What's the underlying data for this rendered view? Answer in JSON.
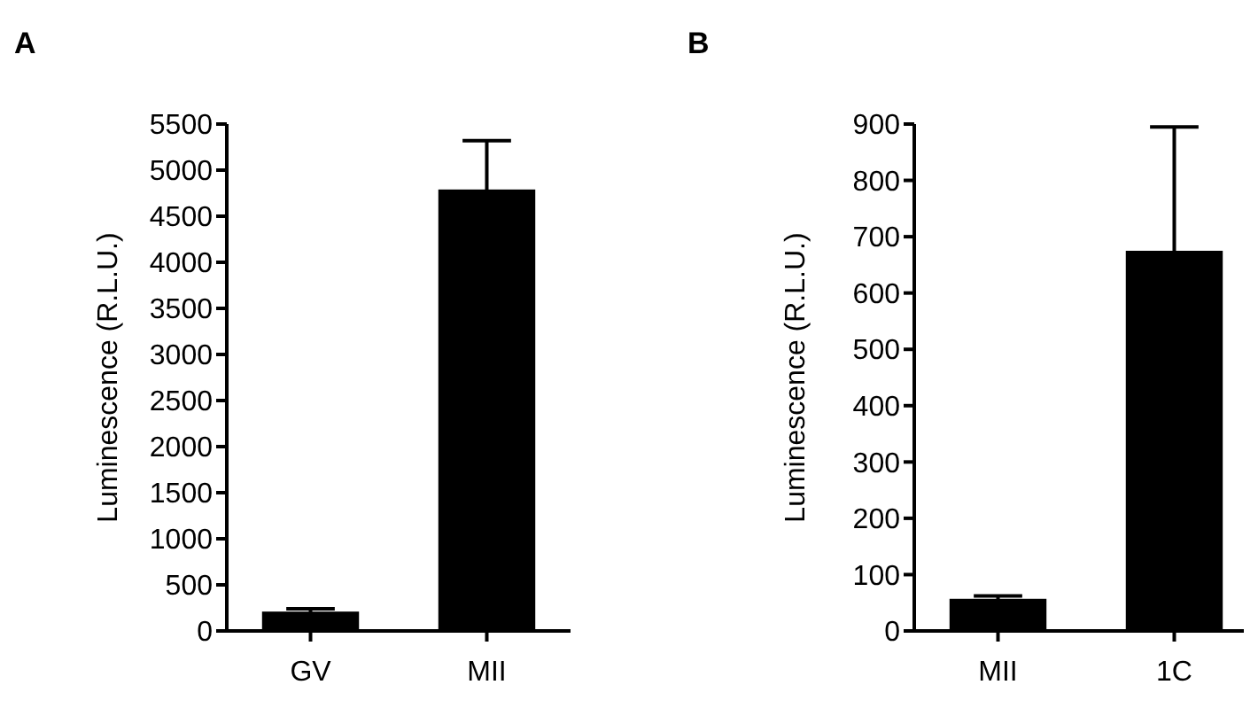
{
  "chart_data": [
    {
      "type": "bar",
      "title": "A",
      "ylabel": "Luminescence (R.L.U.)",
      "categories": [
        "GV",
        "MII"
      ],
      "values": [
        210,
        4790
      ],
      "errors": [
        30,
        530
      ],
      "color": "#000000",
      "ylim": [
        0,
        5500
      ],
      "yticks": [
        0,
        500,
        1000,
        1500,
        2000,
        2500,
        3000,
        3500,
        4000,
        4500,
        5000,
        5500
      ],
      "grid": false
    },
    {
      "type": "bar",
      "title": "B",
      "ylabel": "Luminescence (R.L.U.)",
      "categories": [
        "MII",
        "1C"
      ],
      "values": [
        57,
        675
      ],
      "errors": [
        5,
        220
      ],
      "color": "#000000",
      "ylim": [
        0,
        900
      ],
      "yticks": [
        0,
        100,
        200,
        300,
        400,
        500,
        600,
        700,
        800,
        900
      ],
      "grid": false
    }
  ]
}
